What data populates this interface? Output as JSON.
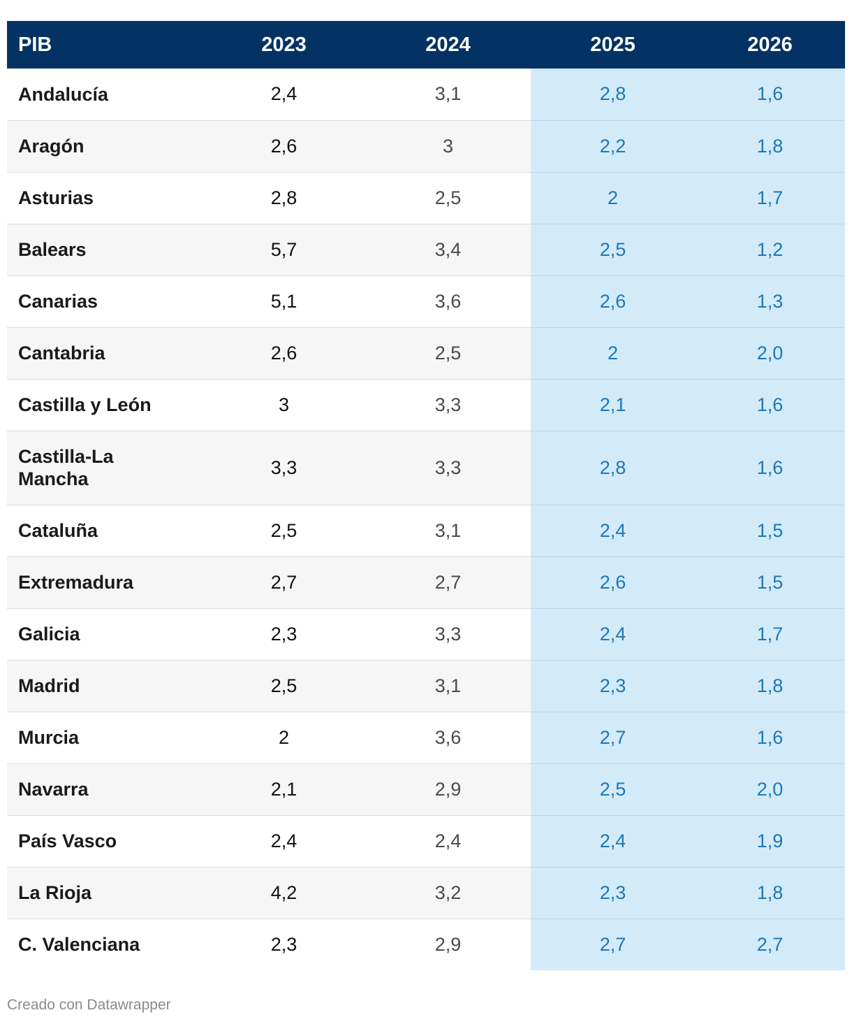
{
  "chart_data": {
    "type": "table",
    "columns": [
      "PIB",
      "2023",
      "2024",
      "2025",
      "2026"
    ],
    "highlighted_columns": [
      "2025",
      "2026"
    ],
    "rows": [
      {
        "region": "Andalucía",
        "values": [
          "2,4",
          "3,1",
          "2,8",
          "1,6"
        ]
      },
      {
        "region": "Aragón",
        "values": [
          "2,6",
          "3",
          "2,2",
          "1,8"
        ]
      },
      {
        "region": "Asturias",
        "values": [
          "2,8",
          "2,5",
          "2",
          "1,7"
        ]
      },
      {
        "region": "Balears",
        "values": [
          "5,7",
          "3,4",
          "2,5",
          "1,2"
        ]
      },
      {
        "region": "Canarias",
        "values": [
          "5,1",
          "3,6",
          "2,6",
          "1,3"
        ]
      },
      {
        "region": "Cantabria",
        "values": [
          "2,6",
          "2,5",
          "2",
          "2,0"
        ]
      },
      {
        "region": "Castilla y León",
        "values": [
          "3",
          "3,3",
          "2,1",
          "1,6"
        ]
      },
      {
        "region": "Castilla-La Mancha",
        "values": [
          "3,3",
          "3,3",
          "2,8",
          "1,6"
        ]
      },
      {
        "region": "Cataluña",
        "values": [
          "2,5",
          "3,1",
          "2,4",
          "1,5"
        ]
      },
      {
        "region": "Extremadura",
        "values": [
          "2,7",
          "2,7",
          "2,6",
          "1,5"
        ]
      },
      {
        "region": "Galicia",
        "values": [
          "2,3",
          "3,3",
          "2,4",
          "1,7"
        ]
      },
      {
        "region": "Madrid",
        "values": [
          "2,5",
          "3,1",
          "2,3",
          "1,8"
        ]
      },
      {
        "region": "Murcia",
        "values": [
          "2",
          "3,6",
          "2,7",
          "1,6"
        ]
      },
      {
        "region": "Navarra",
        "values": [
          "2,1",
          "2,9",
          "2,5",
          "2,0"
        ]
      },
      {
        "region": "País Vasco",
        "values": [
          "2,4",
          "2,4",
          "2,4",
          "1,9"
        ]
      },
      {
        "region": "La Rioja",
        "values": [
          "4,2",
          "3,2",
          "2,3",
          "1,8"
        ]
      },
      {
        "region": "C. Valenciana",
        "values": [
          "2,3",
          "2,9",
          "2,7",
          "2,7"
        ]
      }
    ],
    "colors": {
      "header_bg": "#053264",
      "highlight_bg": "#d3eaf9",
      "highlight_text": "#1c78b8"
    }
  },
  "footer": {
    "credit": "Creado con Datawrapper"
  }
}
